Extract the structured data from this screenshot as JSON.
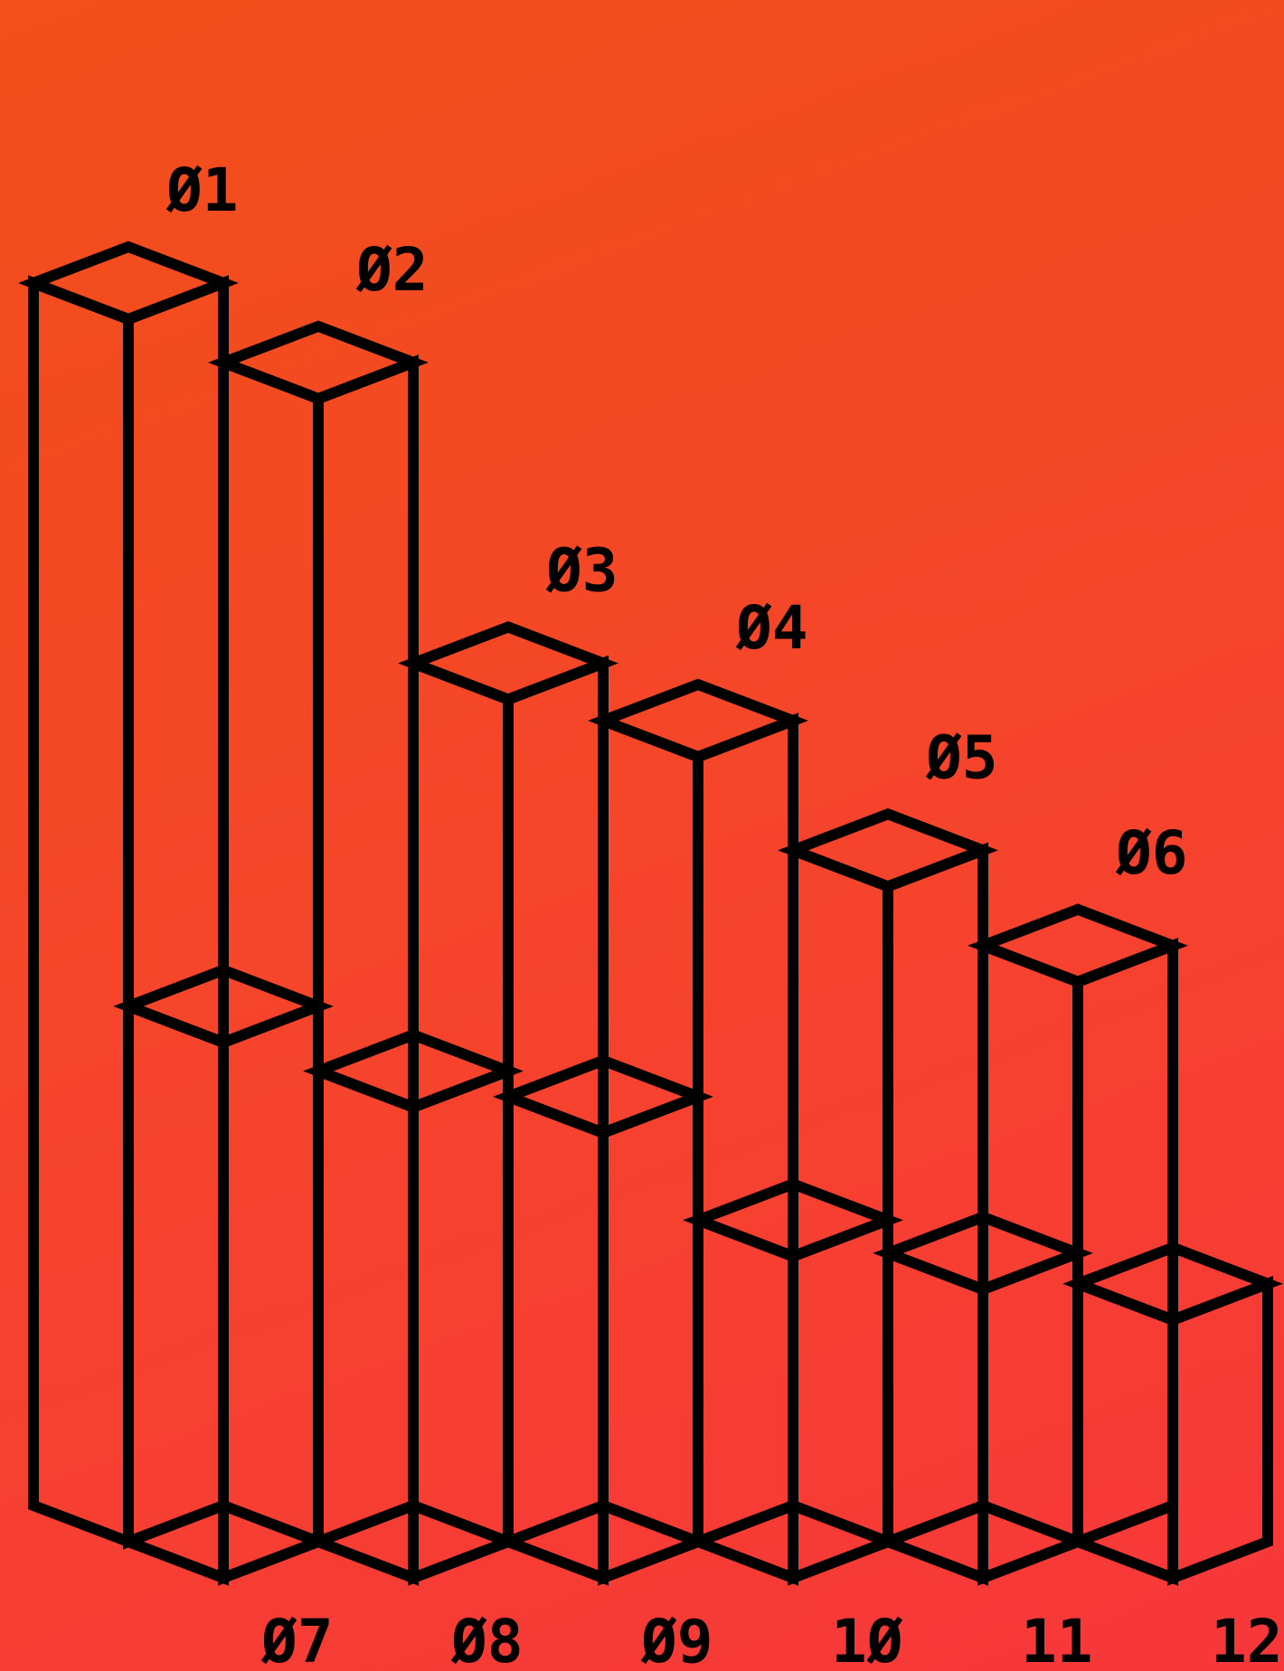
{
  "chart_data": {
    "type": "bar",
    "style": "isometric-3d-outline",
    "background": {
      "from": "#f24f19",
      "to": "#f7373a"
    },
    "line_color": "#000000",
    "rows": [
      {
        "row": "back",
        "label_position": "above-top",
        "categories": [
          "Ø1",
          "Ø2",
          "Ø3",
          "Ø4",
          "Ø5",
          "Ø6"
        ],
        "values": [
          100,
          93.5,
          68.9,
          64.2,
          53.6,
          45.8
        ]
      },
      {
        "row": "front",
        "label_position": "below-base",
        "categories": [
          "Ø7",
          "Ø8",
          "Ø9",
          "1Ø",
          "11",
          "12"
        ],
        "values": [
          43.8,
          38.5,
          36.4,
          26.3,
          23.6,
          21.1
        ]
      }
    ]
  }
}
